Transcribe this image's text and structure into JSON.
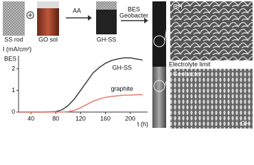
{
  "labels": {
    "ss_rod": "SS rod",
    "go_sol": "GO sol",
    "aa": "AA",
    "gh_ss": "GH-SS",
    "bes": "BES",
    "geobacter_arrow": "Geobacter",
    "electrolyte": "Electrolyte limit",
    "sem_top": "GH",
    "sem_geobacter": "Geobacter",
    "sem_bottom": "GH"
  },
  "chart_data": {
    "type": "line",
    "y_label": "I (mA/cm²)",
    "subtitle": "BES",
    "x_label": "t (h)",
    "x": [
      20,
      40,
      60,
      80,
      90,
      100,
      110,
      120,
      130,
      140,
      150,
      160,
      170,
      180,
      190,
      200,
      210,
      220
    ],
    "series": [
      {
        "name": "GH-SS",
        "color": "#3a3a3a",
        "values": [
          0,
          0,
          0,
          0.02,
          0.1,
          0.3,
          0.6,
          1.0,
          1.4,
          1.8,
          2.05,
          2.25,
          2.38,
          2.45,
          2.5,
          2.5,
          2.45,
          2.4
        ]
      },
      {
        "name": "graphite",
        "color": "#e8786c",
        "values": [
          0,
          0,
          0,
          0,
          0,
          0.02,
          0.08,
          0.2,
          0.35,
          0.5,
          0.6,
          0.68,
          0.72,
          0.75,
          0.78,
          0.78,
          0.8,
          0.8
        ]
      }
    ],
    "xlim": [
      20,
      228
    ],
    "ylim": [
      0,
      2.6
    ],
    "xticks": [
      40,
      80,
      120,
      160,
      200
    ],
    "yticks": [
      0,
      1,
      2
    ]
  }
}
